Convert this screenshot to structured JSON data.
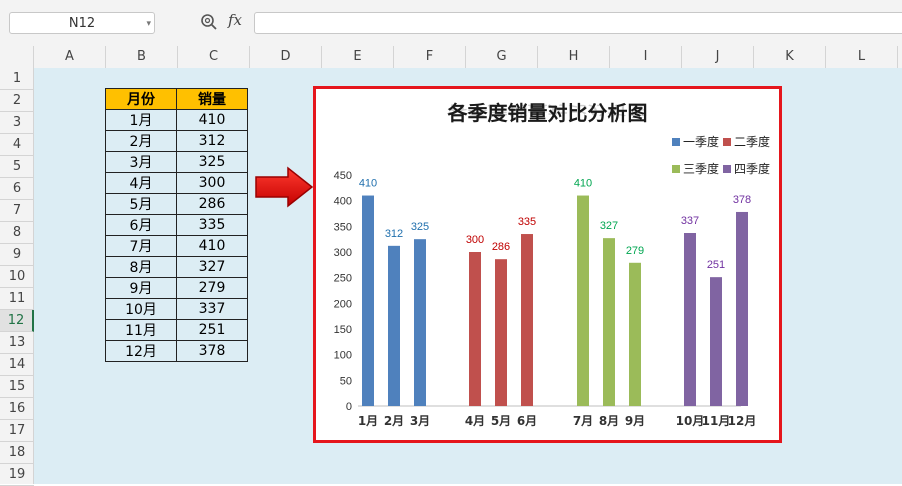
{
  "formula_bar": {
    "name_box": "N12",
    "fx_label": "fx",
    "formula": ""
  },
  "columns": [
    "A",
    "B",
    "C",
    "D",
    "E",
    "F",
    "G",
    "H",
    "I",
    "J",
    "K",
    "L"
  ],
  "rows": [
    "1",
    "2",
    "3",
    "4",
    "5",
    "6",
    "7",
    "8",
    "9",
    "10",
    "11",
    "12",
    "13",
    "14",
    "15",
    "16",
    "17",
    "18",
    "19"
  ],
  "active_row": "12",
  "table": {
    "headers": [
      "月份",
      "销量"
    ],
    "rows": [
      [
        "1月",
        "410"
      ],
      [
        "2月",
        "312"
      ],
      [
        "3月",
        "325"
      ],
      [
        "4月",
        "300"
      ],
      [
        "5月",
        "286"
      ],
      [
        "6月",
        "335"
      ],
      [
        "7月",
        "410"
      ],
      [
        "8月",
        "327"
      ],
      [
        "9月",
        "279"
      ],
      [
        "10月",
        "337"
      ],
      [
        "11月",
        "251"
      ],
      [
        "12月",
        "378"
      ]
    ]
  },
  "chart_data": {
    "type": "bar",
    "title": "各季度销量对比分析图",
    "ylim": [
      0,
      450
    ],
    "yticks": [
      0,
      50,
      100,
      150,
      200,
      250,
      300,
      350,
      400,
      450
    ],
    "grid": false,
    "legend_position": "top-right",
    "series": [
      {
        "name": "一季度",
        "color": "#4f81bd",
        "categories": [
          "1月",
          "2月",
          "3月"
        ],
        "values": [
          410,
          312,
          325
        ]
      },
      {
        "name": "二季度",
        "color": "#c0504d",
        "categories": [
          "4月",
          "5月",
          "6月"
        ],
        "values": [
          300,
          286,
          335
        ]
      },
      {
        "name": "三季度",
        "color": "#9bbb59",
        "categories": [
          "7月",
          "8月",
          "9月"
        ],
        "values": [
          410,
          327,
          279
        ]
      },
      {
        "name": "四季度",
        "color": "#8064a2",
        "categories": [
          "10月",
          "11月",
          "12月"
        ],
        "values": [
          337,
          251,
          378
        ]
      }
    ],
    "label_colors": [
      "#1f6fad",
      "#c00000",
      "#00a650",
      "#7030a0"
    ]
  }
}
